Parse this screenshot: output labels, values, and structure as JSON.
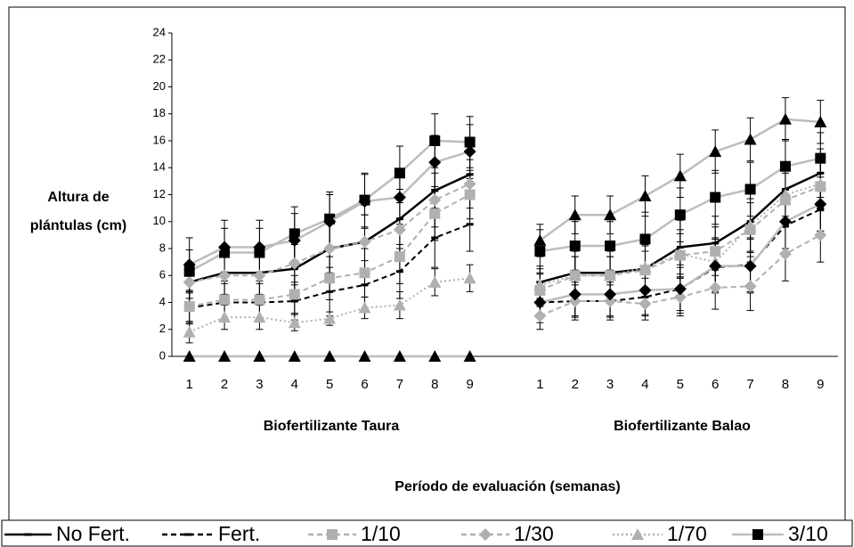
{
  "chart_data": {
    "type": "line",
    "ylabel": [
      "Altura de",
      "plántulas (cm)"
    ],
    "xlabel": "Período de evaluación (semanas)",
    "annotations": [
      "Biofertilizante Taura",
      "Biofertilizante Balao"
    ],
    "categories": [
      "1",
      "2",
      "3",
      "4",
      "5",
      "6",
      "7",
      "8",
      "9",
      null,
      "1",
      "2",
      "3",
      "4",
      "5",
      "6",
      "7",
      "8",
      "9"
    ],
    "ylim": [
      0,
      24
    ],
    "yticks": [
      0,
      2,
      4,
      6,
      8,
      10,
      12,
      14,
      16,
      18,
      20,
      22,
      24
    ],
    "grid": false,
    "legend": "bottom",
    "series": [
      {
        "name": "No Fert.",
        "color": "#000000",
        "dash": "solid",
        "marker": "dash",
        "marker_color": "#000000",
        "values": [
          5.5,
          6.2,
          6.2,
          6.5,
          8.0,
          8.5,
          10.2,
          12.3,
          13.5,
          null,
          5.5,
          6.2,
          6.2,
          6.5,
          8.1,
          8.4,
          10.0,
          12.4,
          13.6
        ],
        "errors": [
          1.2,
          1.6,
          1.6,
          1.8,
          2.0,
          2.0,
          2.2,
          2.0,
          1.8,
          null,
          1.2,
          1.6,
          1.6,
          1.8,
          2.0,
          2.0,
          2.2,
          2.0,
          1.8
        ]
      },
      {
        "name": "Fert.",
        "color": "#000000",
        "dash": "dashed",
        "marker": "dash",
        "marker_color": "#000000",
        "values": [
          3.6,
          4.0,
          4.0,
          4.1,
          4.8,
          5.3,
          6.3,
          8.8,
          9.8,
          null,
          4.0,
          4.1,
          4.1,
          4.4,
          5.0,
          6.6,
          6.8,
          9.7,
          10.9
        ],
        "errors": [
          1.2,
          1.4,
          1.4,
          1.4,
          1.8,
          1.8,
          2.0,
          2.2,
          2.0,
          null,
          1.0,
          1.4,
          1.4,
          1.4,
          1.6,
          1.8,
          2.0,
          2.0,
          1.6
        ]
      },
      {
        "name": "1/10",
        "color": "#b0b0b0",
        "dash": "dashed",
        "marker": "square",
        "marker_color": "#b0b0b0",
        "values": [
          3.7,
          4.2,
          4.2,
          4.6,
          5.8,
          6.2,
          7.4,
          10.6,
          12.0,
          null,
          4.9,
          6.0,
          6.0,
          6.4,
          7.5,
          7.8,
          9.4,
          11.6,
          12.6
        ],
        "errors": [
          1.2,
          1.4,
          1.4,
          1.4,
          1.6,
          1.8,
          2.0,
          2.0,
          1.8,
          null,
          1.2,
          1.4,
          1.4,
          1.4,
          1.6,
          1.8,
          2.0,
          2.0,
          1.8
        ]
      },
      {
        "name": "1/30",
        "color": "#b0b0b0",
        "dash": "dashed",
        "marker": "diamond",
        "marker_color": "#b0b0b0",
        "values": [
          5.5,
          6.0,
          6.0,
          6.9,
          8.0,
          8.5,
          9.4,
          11.6,
          12.8,
          null,
          3.0,
          4.1,
          4.1,
          3.9,
          4.4,
          5.1,
          5.2,
          7.6,
          9.0
        ],
        "errors": [
          1.2,
          1.4,
          1.4,
          1.6,
          1.8,
          2.0,
          2.0,
          2.0,
          1.8,
          null,
          1.0,
          1.2,
          1.2,
          1.2,
          1.4,
          1.6,
          1.8,
          2.0,
          2.0
        ]
      },
      {
        "name": "1/70",
        "color": "#b0b0b0",
        "dash": "dotted",
        "marker": "triangle",
        "marker_color": "#b0b0b0",
        "values": [
          1.8,
          2.9,
          2.9,
          2.5,
          2.8,
          3.6,
          3.8,
          5.5,
          5.8,
          null,
          5.3,
          6.0,
          6.0,
          6.6,
          7.6,
          7.0,
          9.7,
          12.0,
          12.8
        ],
        "errors": [
          0.8,
          0.9,
          0.9,
          0.6,
          0.5,
          0.8,
          1.0,
          1.0,
          1.0,
          null,
          1.2,
          1.4,
          1.4,
          1.6,
          1.8,
          1.8,
          2.0,
          2.0,
          1.8
        ]
      },
      {
        "name": "3/10",
        "color": "#bdbdbd",
        "dash": "solid",
        "marker": "square",
        "marker_color": "#000000",
        "values": [
          6.3,
          7.7,
          7.7,
          9.1,
          10.2,
          11.6,
          13.6,
          16.0,
          15.9,
          null,
          7.8,
          8.2,
          8.2,
          8.7,
          10.5,
          11.8,
          12.4,
          14.1,
          14.7
        ],
        "errors": [
          1.6,
          1.8,
          1.8,
          2.0,
          2.0,
          2.0,
          2.0,
          2.0,
          1.9,
          null,
          1.6,
          1.8,
          1.8,
          2.0,
          2.0,
          2.0,
          2.0,
          2.0,
          1.9
        ]
      },
      {
        "color": "#bdbdbd",
        "dash": "solid",
        "marker": "diamond",
        "marker_color": "#000000",
        "values": [
          6.8,
          8.1,
          8.1,
          8.6,
          10.0,
          11.5,
          11.8,
          14.4,
          15.2,
          null,
          4.0,
          4.6,
          4.6,
          4.9,
          5.0,
          6.7,
          6.7,
          10.0,
          11.3
        ],
        "errors": [
          2.0,
          2.0,
          2.0,
          2.0,
          2.0,
          2.0,
          2.0,
          2.0,
          2.0,
          null,
          1.5,
          1.6,
          1.6,
          1.8,
          1.8,
          2.0,
          2.0,
          2.0,
          2.0
        ]
      },
      {
        "color": "#bdbdbd",
        "dash": "solid",
        "marker": "triangle",
        "marker_color": "#000000",
        "values": [
          0,
          0,
          0,
          0,
          0,
          0,
          0,
          0,
          0,
          null,
          8.6,
          10.5,
          10.5,
          11.9,
          13.4,
          15.2,
          16.1,
          17.6,
          17.4
        ],
        "errors": [
          null,
          null,
          null,
          null,
          null,
          null,
          null,
          null,
          null,
          null,
          1.2,
          1.4,
          1.4,
          1.5,
          1.6,
          1.6,
          1.6,
          1.6,
          1.6
        ]
      }
    ]
  }
}
